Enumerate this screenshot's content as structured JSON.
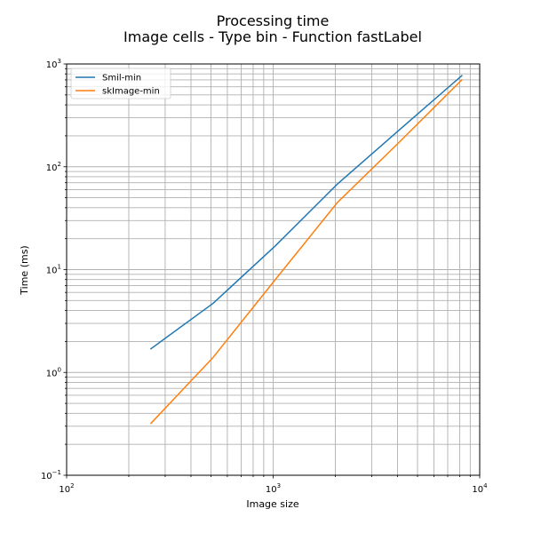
{
  "chart_data": {
    "type": "line",
    "title_line1": "Processing time",
    "title_line2": "Image cells - Type bin - Function fastLabel",
    "xlabel": "Image size",
    "ylabel": "Time (ms)",
    "xscale": "log",
    "yscale": "log",
    "xlim": [
      100,
      10000
    ],
    "ylim": [
      0.1,
      1000
    ],
    "grid": true,
    "legend_position": "top-left",
    "x": [
      256,
      512,
      1024,
      2048,
      4096,
      8192
    ],
    "series": [
      {
        "name": "Smil-min",
        "color": "#1f77b4",
        "values": [
          1.7,
          4.7,
          17,
          68,
          230,
          770
        ]
      },
      {
        "name": "skImage-min",
        "color": "#ff7f0e",
        "values": [
          0.32,
          1.4,
          8,
          45,
          175,
          700
        ]
      }
    ],
    "x_ticks": [
      {
        "value": 100,
        "base": "10",
        "exp": "2"
      },
      {
        "value": 1000,
        "base": "10",
        "exp": "3"
      },
      {
        "value": 10000,
        "base": "10",
        "exp": "4"
      }
    ],
    "y_ticks": [
      {
        "value": 0.1,
        "base": "10",
        "exp": "−1"
      },
      {
        "value": 1,
        "base": "10",
        "exp": "0"
      },
      {
        "value": 10,
        "base": "10",
        "exp": "1"
      },
      {
        "value": 100,
        "base": "10",
        "exp": "2"
      },
      {
        "value": 1000,
        "base": "10",
        "exp": "3"
      }
    ]
  }
}
